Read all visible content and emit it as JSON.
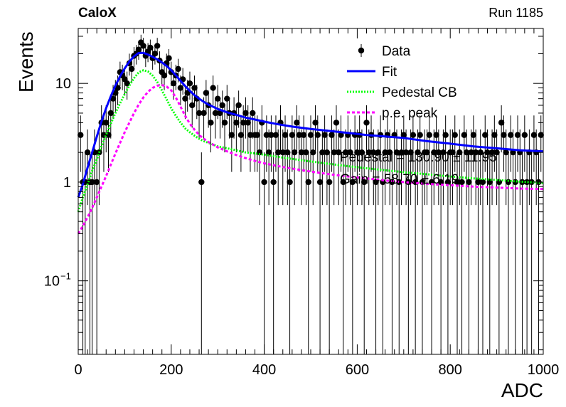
{
  "chart_data": {
    "type": "scatter",
    "title_left": "CaloX",
    "title_right": "Run 1185",
    "xlabel": "ADC",
    "ylabel": "Events",
    "xlim": [
      0,
      1000
    ],
    "ylim": [
      0.018,
      36
    ],
    "y_scale": "log",
    "x_ticks": [
      {
        "value": 0,
        "label": "0"
      },
      {
        "value": 200,
        "label": "200"
      },
      {
        "value": 400,
        "label": "400"
      },
      {
        "value": 600,
        "label": "600"
      },
      {
        "value": 800,
        "label": "800"
      },
      {
        "value": 1000,
        "label": "1000"
      }
    ],
    "y_ticks": [
      {
        "value": 0.1,
        "label": "10",
        "sup": "−1"
      },
      {
        "value": 1,
        "label": "1",
        "sup": ""
      },
      {
        "value": 10,
        "label": "10",
        "sup": ""
      }
    ],
    "legend": {
      "placement": "top-right",
      "entries": [
        {
          "label": "Data",
          "style": "marker",
          "color": "#000000"
        },
        {
          "label": "Fit",
          "style": "solid",
          "color": "#0000ff"
        },
        {
          "label": "Pedestal CB",
          "style": "dotted",
          "color": "#00ff00"
        },
        {
          "label": "p.e. peak",
          "style": "dashed",
          "color": "#ff00ff"
        }
      ]
    },
    "annotations": [
      {
        "text": "Pedestal = 130.90 ± 11.95"
      },
      {
        "text": "Gain = 58.70 ± 6.19"
      }
    ],
    "series": [
      {
        "name": "Data",
        "style": "points",
        "color": "#000000",
        "x": [
          5,
          10,
          15,
          20,
          25,
          30,
          35,
          40,
          45,
          50,
          55,
          60,
          65,
          70,
          75,
          80,
          85,
          90,
          95,
          100,
          105,
          110,
          115,
          120,
          125,
          130,
          135,
          140,
          145,
          150,
          155,
          160,
          165,
          170,
          175,
          180,
          185,
          190,
          195,
          200,
          205,
          210,
          215,
          220,
          225,
          230,
          235,
          240,
          245,
          250,
          255,
          260,
          265,
          270,
          275,
          280,
          285,
          290,
          295,
          300,
          305,
          310,
          315,
          320,
          325,
          330,
          335,
          340,
          345,
          350,
          355,
          360,
          365,
          370,
          375,
          380,
          385,
          390,
          395,
          400,
          405,
          410,
          415,
          420,
          425,
          430,
          435,
          440,
          445,
          450,
          455,
          460,
          465,
          470,
          475,
          480,
          485,
          490,
          495,
          500,
          505,
          510,
          515,
          520,
          525,
          530,
          535,
          540,
          545,
          550,
          555,
          560,
          565,
          570,
          575,
          580,
          585,
          590,
          595,
          600,
          605,
          610,
          615,
          620,
          625,
          630,
          635,
          640,
          645,
          650,
          655,
          660,
          665,
          670,
          675,
          680,
          685,
          690,
          695,
          700,
          705,
          710,
          715,
          720,
          725,
          730,
          735,
          740,
          745,
          750,
          755,
          760,
          765,
          770,
          775,
          780,
          785,
          790,
          795,
          800,
          805,
          810,
          815,
          820,
          825,
          830,
          835,
          840,
          845,
          850,
          855,
          860,
          865,
          870,
          875,
          880,
          885,
          890,
          895,
          900,
          905,
          910,
          915,
          920,
          925,
          930,
          935,
          940,
          945,
          950,
          955,
          960,
          965,
          970,
          975,
          980,
          985,
          990,
          995
        ],
        "y": [
          3,
          1,
          1,
          2,
          1,
          1,
          2,
          1,
          2,
          4,
          3,
          4,
          3,
          5,
          7,
          8,
          9,
          13,
          12,
          11,
          10,
          16,
          14,
          19,
          20,
          22,
          26,
          24,
          19,
          21,
          23,
          18,
          20,
          24,
          17,
          13,
          12,
          16,
          18,
          13,
          10,
          12,
          14,
          9,
          11,
          7,
          8,
          10,
          6,
          9,
          7,
          5,
          1,
          5,
          8,
          6,
          4,
          9,
          5,
          7,
          5,
          6,
          4,
          7,
          5,
          3,
          5,
          4,
          6,
          3,
          4,
          5,
          4,
          3,
          5,
          3,
          3,
          2,
          4,
          1,
          3,
          2,
          3,
          1,
          3,
          2,
          4,
          2,
          3,
          2,
          1,
          3,
          2,
          4,
          3,
          2,
          3,
          2,
          1,
          3,
          2,
          4,
          3,
          1,
          2,
          3,
          2,
          1,
          3,
          2,
          4,
          2,
          3,
          1,
          2,
          3,
          2,
          1,
          3,
          2,
          3,
          2,
          1,
          4,
          2,
          3,
          2,
          1,
          2,
          3,
          1,
          2,
          3,
          2,
          1,
          3,
          2,
          1,
          2,
          3,
          2,
          1,
          2,
          3,
          1,
          2,
          3,
          1,
          2,
          2,
          3,
          1,
          2,
          3,
          2,
          1,
          2,
          3,
          1,
          2,
          2,
          3,
          1,
          2,
          1,
          3,
          2,
          1,
          2,
          3,
          2,
          1,
          2,
          1,
          3,
          2,
          1,
          2,
          3,
          2,
          1,
          4,
          3,
          2,
          1,
          3,
          2,
          1,
          3,
          2,
          1,
          3,
          1,
          2,
          1,
          3,
          2,
          1,
          3
        ]
      },
      {
        "name": "Fit",
        "style": "solid",
        "color": "#0000ff",
        "x": [
          0,
          10,
          20,
          30,
          40,
          50,
          60,
          70,
          80,
          90,
          100,
          110,
          120,
          130,
          140,
          150,
          160,
          170,
          180,
          190,
          200,
          210,
          220,
          230,
          240,
          250,
          260,
          270,
          280,
          290,
          300,
          320,
          340,
          360,
          380,
          400,
          430,
          460,
          500,
          540,
          580,
          620,
          660,
          700,
          750,
          800,
          850,
          900,
          950,
          1000
        ],
        "y": [
          0.7,
          0.95,
          1.4,
          2.0,
          2.9,
          4.1,
          5.6,
          7.4,
          9.5,
          11.8,
          14.2,
          16.6,
          18.8,
          20.3,
          20.4,
          19.6,
          18.6,
          17.5,
          16.3,
          15.0,
          13.6,
          12.1,
          10.6,
          9.4,
          8.4,
          7.6,
          7.0,
          6.5,
          6.1,
          5.8,
          5.5,
          5.1,
          4.8,
          4.5,
          4.3,
          4.1,
          3.85,
          3.65,
          3.45,
          3.3,
          3.15,
          3.0,
          2.9,
          2.8,
          2.6,
          2.45,
          2.3,
          2.2,
          2.1,
          2.05
        ]
      },
      {
        "name": "Pedestal CB",
        "style": "dotted",
        "color": "#00ff00",
        "x": [
          0,
          10,
          20,
          30,
          40,
          50,
          60,
          70,
          80,
          90,
          100,
          110,
          120,
          130,
          140,
          150,
          160,
          170,
          180,
          190,
          200,
          210,
          220,
          230,
          240,
          250,
          260,
          270,
          280,
          290,
          300,
          320,
          340,
          360,
          380,
          400,
          430,
          460,
          500,
          540,
          580,
          620,
          660,
          700,
          750,
          800,
          850,
          900,
          950,
          1000
        ],
        "y": [
          0.5,
          0.7,
          0.95,
          1.3,
          1.7,
          2.3,
          3.0,
          3.9,
          5.0,
          6.3,
          7.8,
          9.5,
          11.3,
          12.9,
          13.6,
          13.2,
          12.0,
          10.3,
          8.5,
          6.9,
          5.6,
          4.7,
          4.0,
          3.5,
          3.2,
          2.95,
          2.75,
          2.6,
          2.5,
          2.4,
          2.3,
          2.2,
          2.1,
          2.0,
          1.95,
          1.9,
          1.8,
          1.72,
          1.62,
          1.53,
          1.45,
          1.38,
          1.32,
          1.26,
          1.2,
          1.14,
          1.09,
          1.05,
          1.01,
          0.98
        ]
      },
      {
        "name": "p.e. peak",
        "style": "dashed",
        "color": "#ff00ff",
        "x": [
          0,
          10,
          20,
          30,
          40,
          50,
          60,
          70,
          80,
          90,
          100,
          110,
          120,
          130,
          140,
          150,
          160,
          170,
          180,
          190,
          200,
          210,
          220,
          230,
          240,
          250,
          260,
          270,
          280,
          290,
          300,
          320,
          340,
          360,
          380,
          400,
          430,
          460,
          500,
          540,
          580,
          620,
          660,
          700,
          750,
          800,
          850,
          900,
          950,
          1000
        ],
        "y": [
          0.3,
          0.36,
          0.44,
          0.55,
          0.7,
          0.9,
          1.15,
          1.5,
          1.95,
          2.5,
          3.2,
          4.0,
          5.0,
          6.1,
          7.2,
          8.2,
          9.0,
          9.5,
          9.6,
          9.3,
          8.5,
          7.2,
          5.8,
          4.7,
          3.9,
          3.4,
          3.0,
          2.75,
          2.55,
          2.4,
          2.25,
          2.05,
          1.88,
          1.75,
          1.64,
          1.55,
          1.45,
          1.37,
          1.28,
          1.2,
          1.14,
          1.09,
          1.04,
          1.0,
          0.96,
          0.93,
          0.9,
          0.88,
          0.86,
          0.85
        ]
      }
    ]
  }
}
